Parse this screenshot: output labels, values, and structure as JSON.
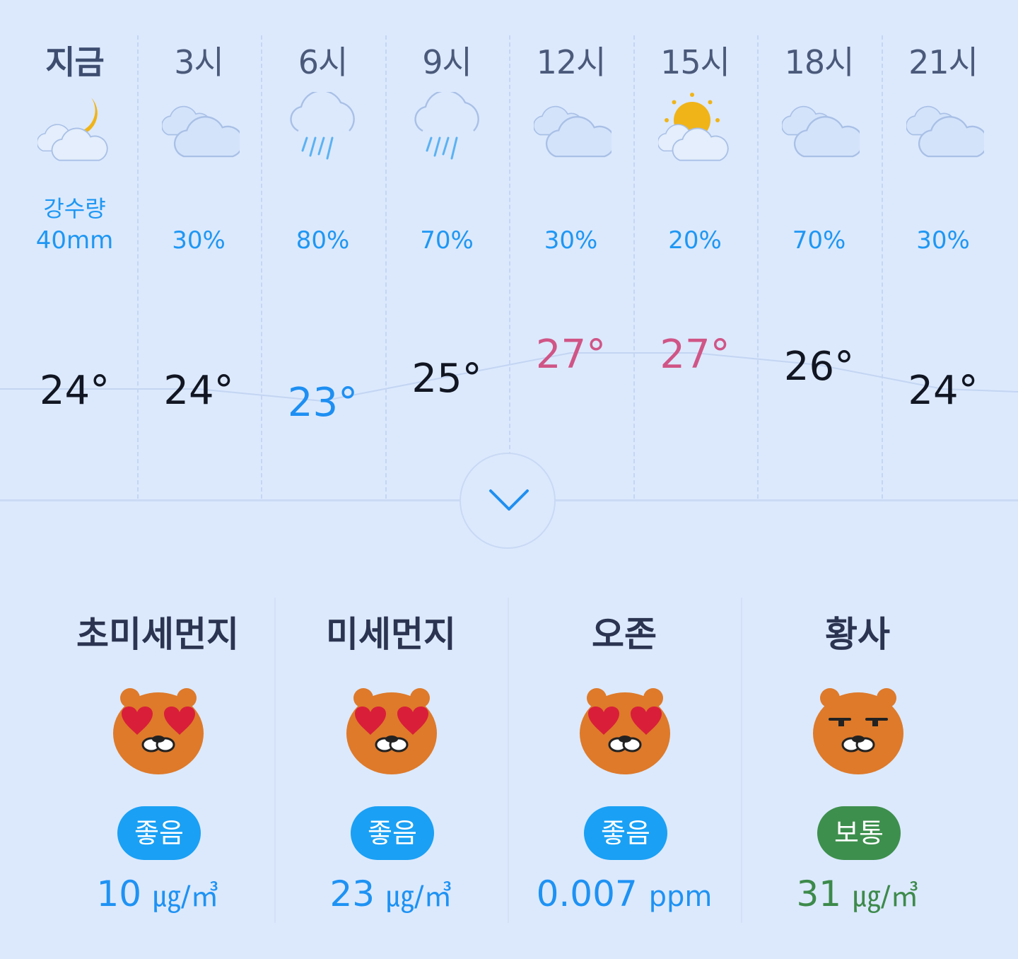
{
  "forecast": [
    {
      "hour": "지금",
      "icon": "night-cloud-icon",
      "precip_label": "강수량",
      "precip": "40mm",
      "temp": "24°",
      "temp_value": 24,
      "tone": "normal"
    },
    {
      "hour": "3시",
      "icon": "cloud-icon",
      "precip_label": "",
      "precip": "30%",
      "temp": "24°",
      "temp_value": 24,
      "tone": "normal"
    },
    {
      "hour": "6시",
      "icon": "rain-icon",
      "precip_label": "",
      "precip": "80%",
      "temp": "23°",
      "temp_value": 23,
      "tone": "cold"
    },
    {
      "hour": "9시",
      "icon": "rain-icon",
      "precip_label": "",
      "precip": "70%",
      "temp": "25°",
      "temp_value": 25,
      "tone": "normal"
    },
    {
      "hour": "12시",
      "icon": "cloud-icon",
      "precip_label": "",
      "precip": "30%",
      "temp": "27°",
      "temp_value": 27,
      "tone": "hot"
    },
    {
      "hour": "15시",
      "icon": "sun-cloud-icon",
      "precip_label": "",
      "precip": "20%",
      "temp": "27°",
      "temp_value": 27,
      "tone": "hot"
    },
    {
      "hour": "18시",
      "icon": "cloud-icon",
      "precip_label": "",
      "precip": "70%",
      "temp": "26°",
      "temp_value": 26,
      "tone": "normal"
    },
    {
      "hour": "21시",
      "icon": "cloud-icon",
      "precip_label": "",
      "precip": "30%",
      "temp": "24°",
      "temp_value": 24,
      "tone": "normal"
    }
  ],
  "expand_icon": "chevron-down-icon",
  "air_quality": [
    {
      "name": "초미세먼지",
      "face": "heart-eyes-face-icon",
      "status": "좋음",
      "value": "10",
      "unit": "㎍/㎥",
      "level": "good"
    },
    {
      "name": "미세먼지",
      "face": "heart-eyes-face-icon",
      "status": "좋음",
      "value": "23",
      "unit": "㎍/㎥",
      "level": "good"
    },
    {
      "name": "오존",
      "face": "heart-eyes-face-icon",
      "status": "좋음",
      "value": "0.007",
      "unit": "ppm",
      "level": "good"
    },
    {
      "name": "황사",
      "face": "neutral-face-icon",
      "status": "보통",
      "value": "31",
      "unit": "㎍/㎥",
      "level": "normal"
    }
  ],
  "colors": {
    "background": "#dce9fd",
    "precip": "#1f97f3",
    "temp_cold": "#1e8ff2",
    "temp_hot": "#d05586",
    "good": "#1aa0f4",
    "normal": "#3d8f4d"
  }
}
